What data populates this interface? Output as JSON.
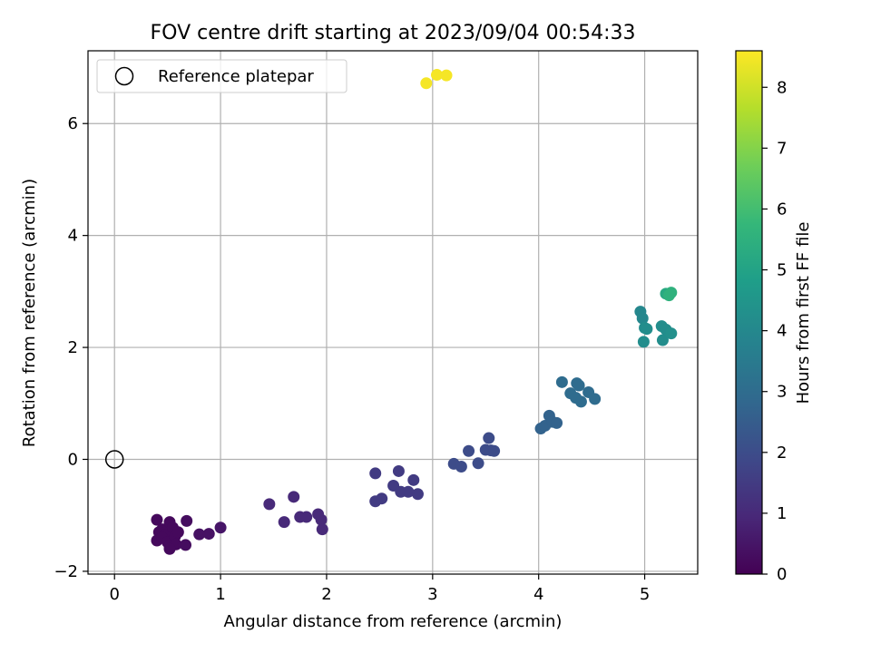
{
  "chart_data": {
    "type": "scatter",
    "title": "FOV centre drift starting at 2023/09/04 00:54:33",
    "xlabel": "Angular distance from reference (arcmin)",
    "ylabel": "Rotation from reference (arcmin)",
    "xlim": [
      -0.25,
      5.5
    ],
    "ylim": [
      -2.05,
      7.3
    ],
    "xticks": [
      0,
      1,
      2,
      3,
      4,
      5
    ],
    "yticks": [
      -2,
      0,
      2,
      4,
      6
    ],
    "grid": true,
    "legend": {
      "placement": "top-left",
      "entries": [
        "Reference platepar"
      ]
    },
    "reference_point": {
      "name": "Reference platepar",
      "x": 0,
      "y": 0
    },
    "colorbar": {
      "label": "Hours from first FF file",
      "range": [
        0,
        8.6
      ],
      "ticks": [
        0,
        1,
        2,
        3,
        4,
        5,
        6,
        7,
        8
      ],
      "colormap": [
        "#440154",
        "#482878",
        "#3e4989",
        "#31688e",
        "#26828e",
        "#1f9e89",
        "#35b779",
        "#6ece58",
        "#b5de2b",
        "#fde725"
      ]
    },
    "points": [
      {
        "x": 0.4,
        "y": -1.08,
        "c": 0.2
      },
      {
        "x": 0.45,
        "y": -1.25,
        "c": 0.2
      },
      {
        "x": 0.52,
        "y": -1.12,
        "c": 0.2
      },
      {
        "x": 0.42,
        "y": -1.3,
        "c": 0.2
      },
      {
        "x": 0.48,
        "y": -1.35,
        "c": 0.2
      },
      {
        "x": 0.55,
        "y": -1.22,
        "c": 0.2
      },
      {
        "x": 0.4,
        "y": -1.45,
        "c": 0.2
      },
      {
        "x": 0.45,
        "y": -1.4,
        "c": 0.2
      },
      {
        "x": 0.5,
        "y": -1.48,
        "c": 0.2
      },
      {
        "x": 0.57,
        "y": -1.38,
        "c": 0.2
      },
      {
        "x": 0.6,
        "y": -1.3,
        "c": 0.2
      },
      {
        "x": 0.52,
        "y": -1.55,
        "c": 0.2
      },
      {
        "x": 0.58,
        "y": -1.52,
        "c": 0.2
      },
      {
        "x": 0.52,
        "y": -1.6,
        "c": 0.2
      },
      {
        "x": 0.68,
        "y": -1.1,
        "c": 0.3
      },
      {
        "x": 0.67,
        "y": -1.53,
        "c": 0.3
      },
      {
        "x": 0.8,
        "y": -1.34,
        "c": 0.4
      },
      {
        "x": 0.89,
        "y": -1.33,
        "c": 0.4
      },
      {
        "x": 1.0,
        "y": -1.22,
        "c": 0.5
      },
      {
        "x": 1.46,
        "y": -0.8,
        "c": 1.0
      },
      {
        "x": 1.6,
        "y": -1.12,
        "c": 1.0
      },
      {
        "x": 1.69,
        "y": -0.67,
        "c": 1.0
      },
      {
        "x": 1.75,
        "y": -1.03,
        "c": 1.0
      },
      {
        "x": 1.81,
        "y": -1.03,
        "c": 1.0
      },
      {
        "x": 1.92,
        "y": -0.98,
        "c": 1.0
      },
      {
        "x": 1.95,
        "y": -1.08,
        "c": 1.0
      },
      {
        "x": 1.96,
        "y": -1.25,
        "c": 1.0
      },
      {
        "x": 2.46,
        "y": -0.25,
        "c": 1.5
      },
      {
        "x": 2.46,
        "y": -0.75,
        "c": 1.5
      },
      {
        "x": 2.52,
        "y": -0.7,
        "c": 1.5
      },
      {
        "x": 2.63,
        "y": -0.47,
        "c": 1.5
      },
      {
        "x": 2.68,
        "y": -0.21,
        "c": 1.5
      },
      {
        "x": 2.7,
        "y": -0.58,
        "c": 1.5
      },
      {
        "x": 2.77,
        "y": -0.58,
        "c": 1.5
      },
      {
        "x": 2.82,
        "y": -0.37,
        "c": 1.5
      },
      {
        "x": 2.86,
        "y": -0.62,
        "c": 1.5
      },
      {
        "x": 3.2,
        "y": -0.08,
        "c": 2.0
      },
      {
        "x": 3.27,
        "y": -0.13,
        "c": 2.0
      },
      {
        "x": 3.34,
        "y": 0.15,
        "c": 2.0
      },
      {
        "x": 3.43,
        "y": -0.07,
        "c": 2.0
      },
      {
        "x": 3.5,
        "y": 0.17,
        "c": 2.0
      },
      {
        "x": 3.53,
        "y": 0.38,
        "c": 2.0
      },
      {
        "x": 3.55,
        "y": 0.16,
        "c": 2.0
      },
      {
        "x": 3.58,
        "y": 0.15,
        "c": 2.0
      },
      {
        "x": 4.02,
        "y": 0.55,
        "c": 2.7
      },
      {
        "x": 4.06,
        "y": 0.6,
        "c": 2.7
      },
      {
        "x": 4.1,
        "y": 0.78,
        "c": 2.7
      },
      {
        "x": 4.13,
        "y": 0.67,
        "c": 2.7
      },
      {
        "x": 4.17,
        "y": 0.65,
        "c": 2.7
      },
      {
        "x": 4.22,
        "y": 1.38,
        "c": 3.0
      },
      {
        "x": 4.3,
        "y": 1.18,
        "c": 3.0
      },
      {
        "x": 4.35,
        "y": 1.1,
        "c": 3.0
      },
      {
        "x": 4.36,
        "y": 1.36,
        "c": 3.0
      },
      {
        "x": 4.38,
        "y": 1.32,
        "c": 3.0
      },
      {
        "x": 4.4,
        "y": 1.03,
        "c": 3.0
      },
      {
        "x": 4.47,
        "y": 1.2,
        "c": 3.0
      },
      {
        "x": 4.53,
        "y": 1.08,
        "c": 3.0
      },
      {
        "x": 4.96,
        "y": 2.64,
        "c": 4.0
      },
      {
        "x": 4.98,
        "y": 2.52,
        "c": 4.0
      },
      {
        "x": 4.99,
        "y": 2.1,
        "c": 4.2
      },
      {
        "x": 5.0,
        "y": 2.35,
        "c": 4.2
      },
      {
        "x": 5.02,
        "y": 2.33,
        "c": 4.2
      },
      {
        "x": 5.16,
        "y": 2.38,
        "c": 4.2
      },
      {
        "x": 5.17,
        "y": 2.13,
        "c": 4.2
      },
      {
        "x": 5.2,
        "y": 2.32,
        "c": 4.2
      },
      {
        "x": 5.25,
        "y": 2.25,
        "c": 4.3
      },
      {
        "x": 5.2,
        "y": 2.96,
        "c": 5.2
      },
      {
        "x": 5.23,
        "y": 2.93,
        "c": 5.5
      },
      {
        "x": 5.25,
        "y": 2.98,
        "c": 5.5
      },
      {
        "x": 2.94,
        "y": 6.72,
        "c": 8.5
      },
      {
        "x": 3.04,
        "y": 6.87,
        "c": 8.5
      },
      {
        "x": 3.13,
        "y": 6.86,
        "c": 8.5
      }
    ]
  }
}
